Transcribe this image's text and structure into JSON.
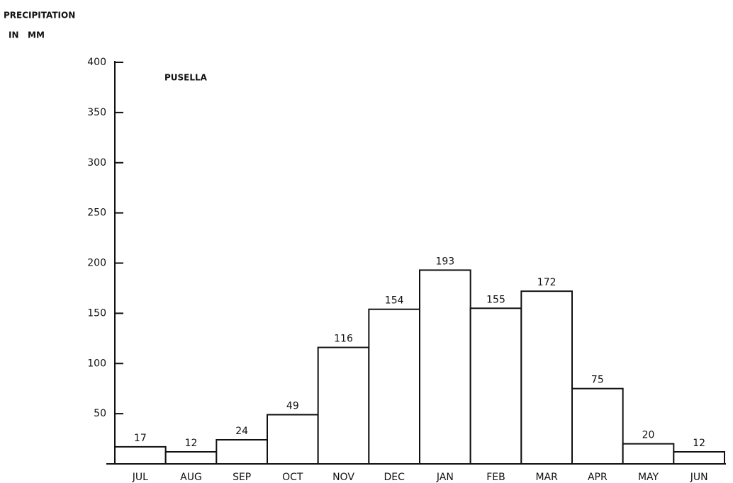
{
  "chart_data": {
    "type": "bar",
    "y_label": [
      "PRECIPITATION",
      "IN   MM"
    ],
    "annotation": "PUSELLA",
    "categories": [
      "JUL",
      "AUG",
      "SEP",
      "OCT",
      "NOV",
      "DEC",
      "JAN",
      "FEB",
      "MAR",
      "APR",
      "MAY",
      "JUN"
    ],
    "values": [
      17,
      12,
      24,
      49,
      116,
      154,
      193,
      155,
      172,
      75,
      20,
      12
    ],
    "color": "#ffffff",
    "ylim": [
      0,
      400
    ],
    "yticks": [
      50,
      100,
      150,
      200,
      250,
      300,
      350,
      400
    ],
    "grid": false
  }
}
